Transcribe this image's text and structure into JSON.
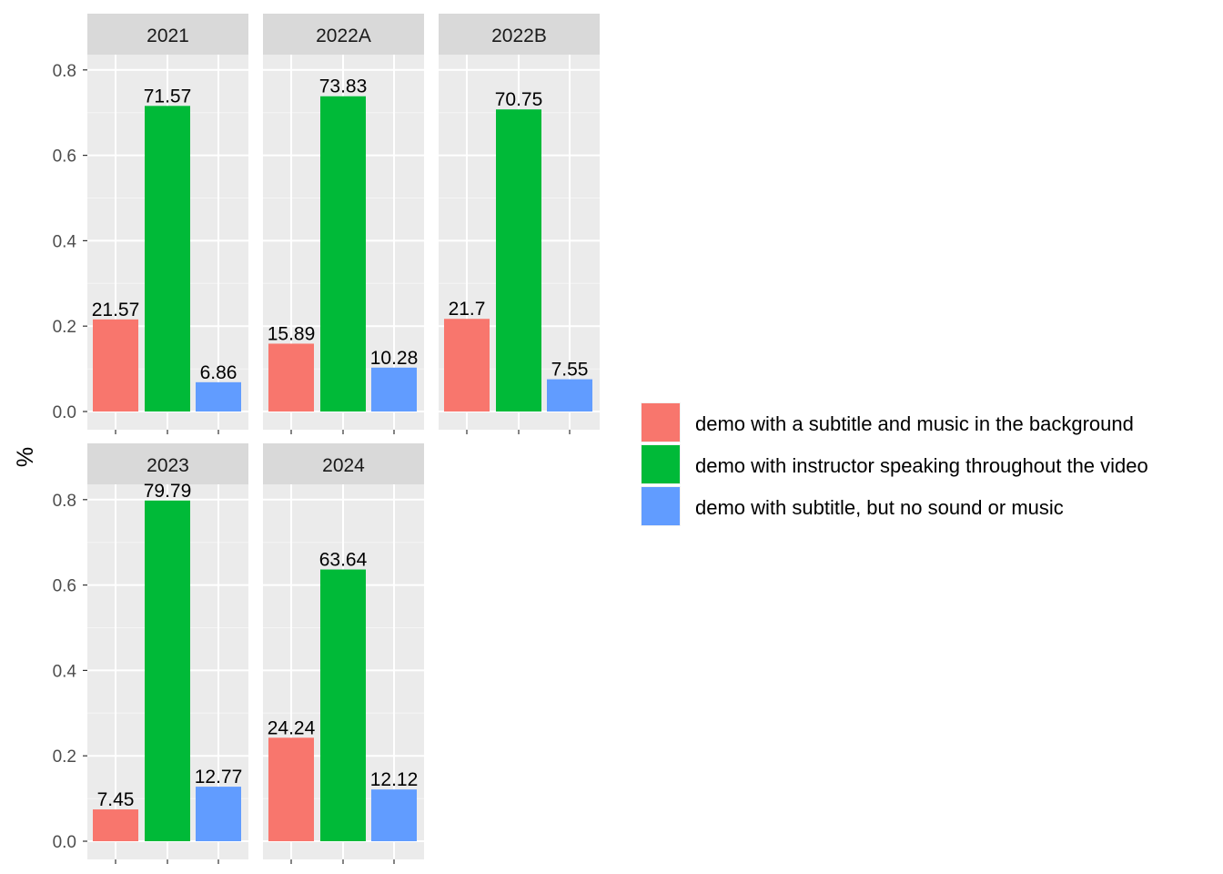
{
  "chart_data": {
    "type": "bar",
    "ylabel": "%",
    "xlabel": "",
    "ylim": [
      0,
      0.85
    ],
    "yticks": [
      "0.0",
      "0.2",
      "0.4",
      "0.6",
      "0.8"
    ],
    "grid": true,
    "legend_placement": "right",
    "series": [
      {
        "name": "demo with a subtitle and music in the background",
        "color": "#F8766D"
      },
      {
        "name": "demo with instructor speaking throughout the video",
        "color": "#00BA38"
      },
      {
        "name": "demo with subtitle, but no sound or music",
        "color": "#619CFF"
      }
    ],
    "panels": [
      {
        "title": "2021",
        "values": [
          0.2157,
          0.7157,
          0.0686
        ],
        "labels": [
          "21.57",
          "71.57",
          "6.86"
        ]
      },
      {
        "title": "2022A",
        "values": [
          0.1589,
          0.7383,
          0.1028
        ],
        "labels": [
          "15.89",
          "73.83",
          "10.28"
        ]
      },
      {
        "title": "2022B",
        "values": [
          0.217,
          0.7075,
          0.0755
        ],
        "labels": [
          "21.7",
          "70.75",
          "7.55"
        ]
      },
      {
        "title": "2023",
        "values": [
          0.0745,
          0.7979,
          0.1277
        ],
        "labels": [
          "7.45",
          "79.79",
          "12.77"
        ]
      },
      {
        "title": "2024",
        "values": [
          0.2424,
          0.6364,
          0.1212
        ],
        "labels": [
          "24.24",
          "63.64",
          "12.12"
        ]
      }
    ]
  }
}
